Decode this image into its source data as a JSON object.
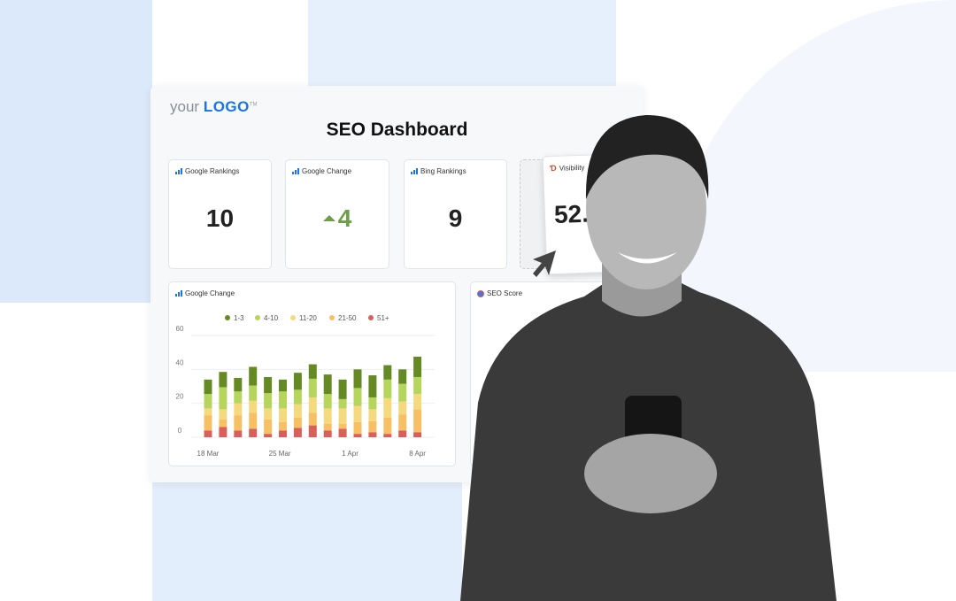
{
  "logo": {
    "prefix": "your",
    "brand": "LOGO",
    "tm": "TM"
  },
  "title": "SEO Dashboard",
  "cards": [
    {
      "label": "Google Rankings",
      "value": "10",
      "icon": "bar-chart-icon"
    },
    {
      "label": "Google Change",
      "value": "4",
      "icon": "bar-chart-icon",
      "trend": "up"
    },
    {
      "label": "Bing Rankings",
      "value": "9",
      "icon": "bar-chart-icon"
    },
    {
      "label": "Visibility",
      "value": "52.",
      "icon": "semrush-icon"
    }
  ],
  "seo_score": {
    "label": "SEO Score",
    "icon": "seo-score-icon"
  },
  "colors": {
    "accent": "#1a73e8",
    "up": "#6e9e4a",
    "bg_blue": "#dce9fb"
  },
  "chart_data": {
    "type": "bar",
    "stacked": true,
    "title": "Google Change",
    "x_tick_labels": [
      "18 Mar",
      "25 Mar",
      "1 Apr",
      "8 Apr"
    ],
    "ylim": [
      0,
      60
    ],
    "yticks": [
      0,
      20,
      40,
      60
    ],
    "grid": true,
    "legend": "top",
    "series": [
      {
        "name": "51+",
        "color": "#d95f5b",
        "values": [
          4,
          6,
          4,
          5,
          2,
          4,
          5.5,
          7,
          4,
          5,
          2,
          3,
          2,
          4,
          3
        ]
      },
      {
        "name": "21-50",
        "color": "#f8c065",
        "values": [
          9,
          4.5,
          9,
          9.5,
          8.5,
          5,
          6,
          7.5,
          4,
          3,
          7,
          6.5,
          9.5,
          9.5,
          13.5
        ]
      },
      {
        "name": "11-20",
        "color": "#f5d97f",
        "values": [
          4,
          6,
          7,
          7,
          6.5,
          8,
          8,
          9,
          9,
          9,
          9.5,
          7,
          11.5,
          7.5,
          9
        ]
      },
      {
        "name": "4-10",
        "color": "#b6d55c",
        "values": [
          8.5,
          13,
          7,
          9,
          9,
          10,
          8.5,
          11,
          8.5,
          5.5,
          10.5,
          7,
          11,
          10.5,
          10
        ]
      },
      {
        "name": "1-3",
        "color": "#658a23",
        "values": [
          8.5,
          9,
          8,
          11,
          9.5,
          7,
          10,
          8.5,
          11.5,
          11.5,
          11,
          13,
          8.5,
          8.5,
          12
        ]
      }
    ]
  }
}
